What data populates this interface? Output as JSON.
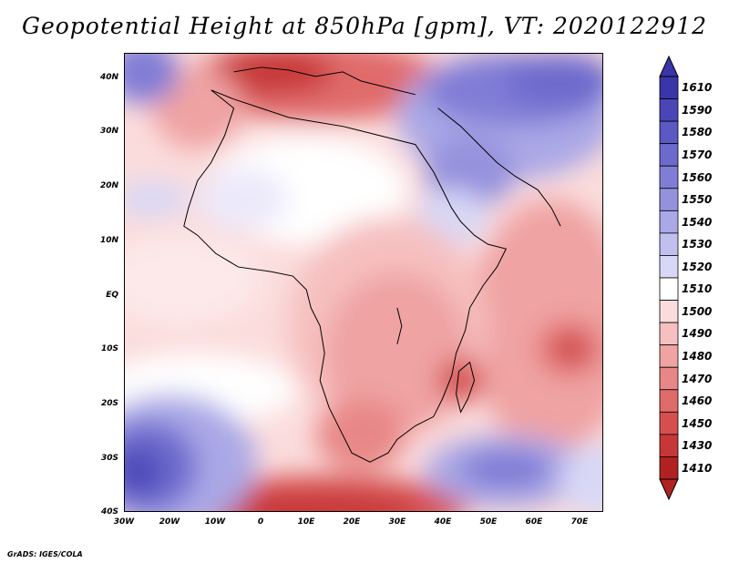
{
  "title": "Geopotential Height at 850hPa [gpm], VT: 2020122912",
  "footer": "GrADS: IGES/COLA",
  "x_ticks": [
    {
      "label": "30W",
      "lon": -30
    },
    {
      "label": "20W",
      "lon": -20
    },
    {
      "label": "10W",
      "lon": -10
    },
    {
      "label": "0",
      "lon": 0
    },
    {
      "label": "10E",
      "lon": 10
    },
    {
      "label": "20E",
      "lon": 20
    },
    {
      "label": "30E",
      "lon": 30
    },
    {
      "label": "40E",
      "lon": 40
    },
    {
      "label": "50E",
      "lon": 50
    },
    {
      "label": "60E",
      "lon": 60
    },
    {
      "label": "70E",
      "lon": 70
    }
  ],
  "y_ticks": [
    {
      "label": "40N",
      "lat": 40
    },
    {
      "label": "30N",
      "lat": 30
    },
    {
      "label": "20N",
      "lat": 20
    },
    {
      "label": "10N",
      "lat": 10
    },
    {
      "label": "EQ",
      "lat": 0
    },
    {
      "label": "10S",
      "lat": -10
    },
    {
      "label": "20S",
      "lat": -20
    },
    {
      "label": "30S",
      "lat": -30
    },
    {
      "label": "40S",
      "lat": -40
    }
  ],
  "map_extent": {
    "lon_min": -30,
    "lon_max": 75,
    "lat_min": -40,
    "lat_max": 45
  },
  "colorbar": {
    "levels": [
      "1610",
      "1590",
      "1580",
      "1570",
      "1560",
      "1550",
      "1540",
      "1530",
      "1520",
      "1510",
      "1500",
      "1490",
      "1480",
      "1470",
      "1460",
      "1450",
      "1430",
      "1410"
    ],
    "colors": [
      "#3a35a8",
      "#4b46b8",
      "#5c58c4",
      "#6d6acd",
      "#807dd6",
      "#9592dd",
      "#aaa8e6",
      "#c0bfee",
      "#d8d8f6",
      "#ffffff",
      "#fbdcdc",
      "#f6c0c0",
      "#efa3a3",
      "#e88787",
      "#e06b6b",
      "#d64f4f",
      "#c73737",
      "#b02222"
    ]
  }
}
